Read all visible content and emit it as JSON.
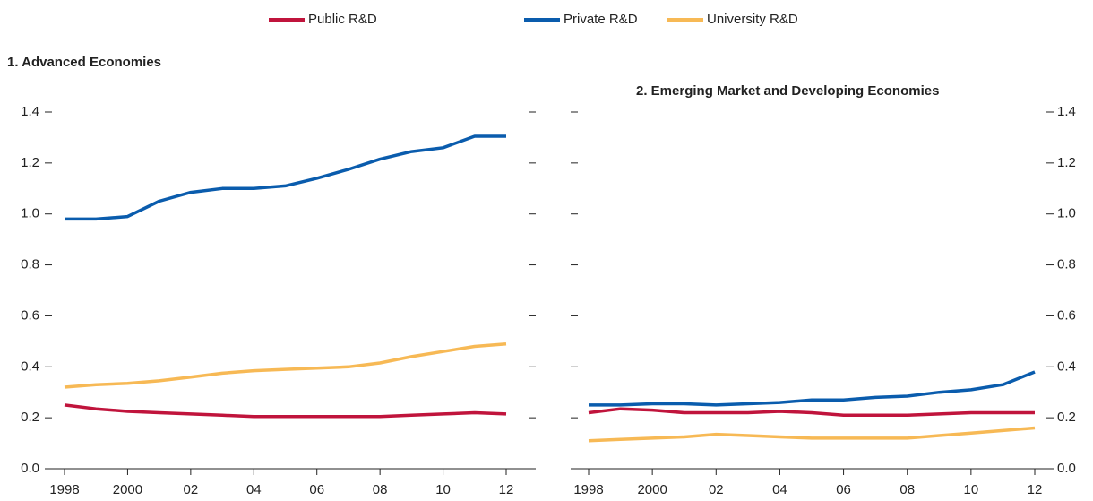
{
  "chart_data": [
    {
      "type": "line",
      "title": "1. Advanced Economies",
      "yaxis_side": "left",
      "categories": [
        "1998",
        null,
        "2000",
        null,
        "02",
        null,
        "04",
        null,
        "06",
        null,
        "08",
        null,
        "10",
        null,
        "12"
      ],
      "ylim": [
        0,
        1.4
      ],
      "yticks": [
        {
          "value": 0,
          "label": "0.0"
        },
        0.2,
        0.4,
        0.6,
        0.8,
        {
          "value": 1,
          "label": "1.0"
        },
        1.2,
        1.4
      ],
      "series": [
        {
          "name": "Public R&D",
          "color": "#c0143c",
          "values": [
            0.25,
            0.235,
            0.225,
            0.22,
            0.215,
            0.21,
            0.205,
            0.205,
            0.205,
            0.205,
            0.205,
            0.21,
            0.215,
            0.22,
            0.215
          ]
        },
        {
          "name": "Private R&D",
          "color": "#0a5cad",
          "values": [
            0.98,
            0.98,
            0.99,
            1.05,
            1.085,
            1.1,
            1.1,
            1.11,
            1.14,
            1.175,
            1.215,
            1.245,
            1.26,
            1.305,
            1.305
          ]
        },
        {
          "name": "University R&D",
          "color": "#f7b955",
          "values": [
            0.32,
            0.33,
            0.335,
            0.345,
            0.36,
            0.375,
            0.385,
            0.39,
            0.395,
            0.4,
            0.415,
            0.44,
            0.46,
            0.48,
            0.49
          ]
        }
      ]
    },
    {
      "type": "line",
      "title": "2. Emerging Market and Developing Economies",
      "yaxis_side": "right",
      "categories": [
        "1998",
        null,
        "2000",
        null,
        "02",
        null,
        "04",
        null,
        "06",
        null,
        "08",
        null,
        "10",
        null,
        "12"
      ],
      "ylim": [
        0,
        1.4
      ],
      "yticks": [
        {
          "value": 0,
          "label": "0.0"
        },
        0.2,
        0.4,
        0.6,
        0.8,
        {
          "value": 1,
          "label": "1.0"
        },
        1.2,
        1.4
      ],
      "series": [
        {
          "color": "#c0143c",
          "values": [
            0.22,
            0.235,
            0.23,
            0.22,
            0.22,
            0.22,
            0.225,
            0.22,
            0.21,
            0.21,
            0.21,
            0.215,
            0.22,
            0.22,
            0.22
          ]
        },
        {
          "color": "#0a5cad",
          "values": [
            0.25,
            0.25,
            0.255,
            0.255,
            0.25,
            0.255,
            0.26,
            0.27,
            0.27,
            0.28,
            0.285,
            0.3,
            0.31,
            0.33,
            0.38
          ]
        },
        {
          "color": "#f7b955",
          "values": [
            0.11,
            0.115,
            0.12,
            0.125,
            0.135,
            0.13,
            0.125,
            0.12,
            0.12,
            0.12,
            0.12,
            0.13,
            0.14,
            0.15,
            0.16
          ]
        }
      ]
    }
  ]
}
